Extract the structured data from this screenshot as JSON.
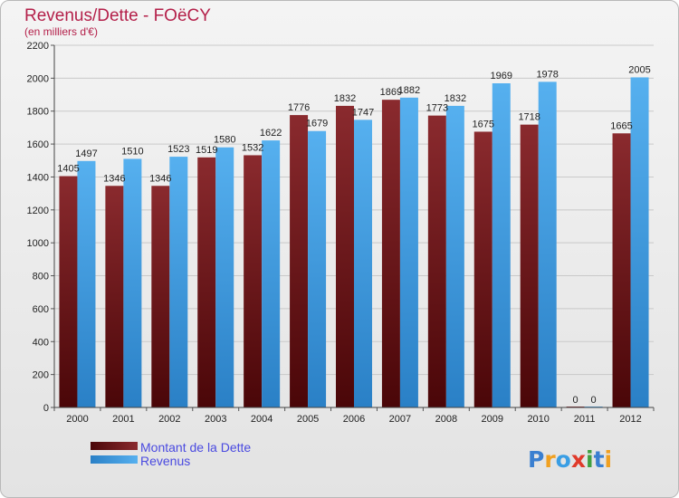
{
  "chart_data": {
    "type": "bar",
    "title": "Revenus/Dette - FOëCY",
    "subtitle": "(en milliers d'€)",
    "xlabel": "",
    "ylabel": "",
    "ylim": [
      0,
      2200
    ],
    "yticks": [
      0,
      200,
      400,
      600,
      800,
      1000,
      1200,
      1400,
      1600,
      1800,
      2000,
      2200
    ],
    "grid": true,
    "legend_position": "bottom-left",
    "categories": [
      "2000",
      "2001",
      "2002",
      "2003",
      "2004",
      "2005",
      "2006",
      "2007",
      "2008",
      "2009",
      "2010",
      "2011",
      "2012"
    ],
    "series": [
      {
        "name": "Montant de la Dette",
        "color": "#7a1518",
        "values": [
          1405,
          1346,
          1346,
          1519,
          1532,
          1776,
          1832,
          1869,
          1773,
          1675,
          1718,
          0,
          1665
        ],
        "labels": [
          "1405",
          "1346",
          "1346",
          "1519",
          "1532",
          "1776",
          "1832",
          "1869",
          "1773",
          "1675",
          "1718",
          "0",
          "1665"
        ]
      },
      {
        "name": "Revenus",
        "color": "#3a9ee4",
        "values": [
          1497,
          1510,
          1523,
          1580,
          1622,
          1679,
          1747,
          1882,
          1832,
          1969,
          1978,
          0,
          2005
        ],
        "labels": [
          "1497",
          "1510",
          "1523",
          "1580",
          "1622",
          "1679",
          "1747",
          "1882",
          "1832",
          "1969",
          "1978",
          "0",
          "2005"
        ]
      }
    ]
  },
  "logo": {
    "text": "Proxiti",
    "letters": [
      {
        "char": "P",
        "color": "#3a7fd0"
      },
      {
        "char": "r",
        "color": "#f0a020"
      },
      {
        "char": "o",
        "color": "#3a9ee4"
      },
      {
        "char": "x",
        "color": "#e03a2a"
      },
      {
        "char": "i",
        "color": "#40a040"
      },
      {
        "char": "t",
        "color": "#3a7fd0"
      },
      {
        "char": "i",
        "color": "#f0a020"
      }
    ]
  }
}
